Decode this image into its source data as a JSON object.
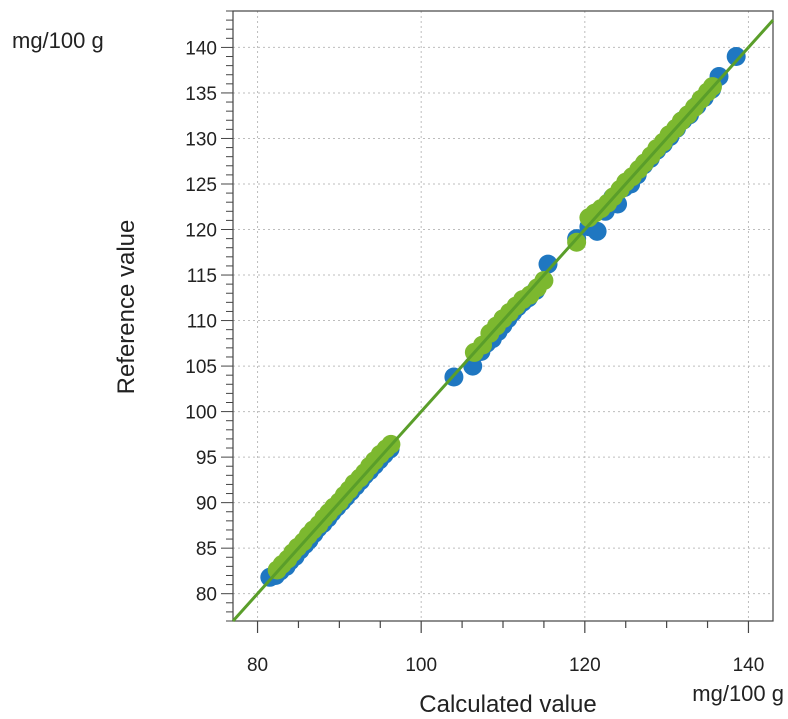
{
  "chart_data": {
    "type": "scatter",
    "title": "",
    "xlabel": "Calculated value",
    "ylabel": "Reference value",
    "x_unit": "mg/100 g",
    "y_unit": "mg/100 g",
    "xlim": [
      77,
      143
    ],
    "ylim": [
      77,
      144
    ],
    "x_ticks": [
      80,
      100,
      120,
      140
    ],
    "y_ticks": [
      80,
      85,
      90,
      95,
      100,
      105,
      110,
      115,
      120,
      125,
      130,
      135,
      140
    ],
    "grid": true,
    "legend": "none",
    "colors": {
      "blue": "#1f77c1",
      "green": "#7cb82f",
      "line": "#5a9e2a",
      "grid": "#bdbdbd"
    },
    "regression_line": {
      "x": [
        77,
        143
      ],
      "y": [
        77,
        143
      ]
    },
    "series": [
      {
        "color": "blue",
        "points": [
          [
            81.5,
            81.8
          ],
          [
            82.2,
            82.0
          ],
          [
            82.8,
            82.5
          ],
          [
            83.5,
            83.0
          ],
          [
            84.0,
            83.6
          ],
          [
            84.6,
            84.1
          ],
          [
            85.2,
            84.8
          ],
          [
            85.8,
            85.4
          ],
          [
            86.3,
            85.9
          ],
          [
            86.9,
            86.6
          ],
          [
            87.4,
            87.2
          ],
          [
            88.0,
            87.7
          ],
          [
            88.6,
            88.3
          ],
          [
            89.1,
            88.9
          ],
          [
            89.7,
            89.5
          ],
          [
            90.3,
            90.1
          ],
          [
            90.8,
            90.6
          ],
          [
            91.4,
            91.2
          ],
          [
            92.0,
            91.8
          ],
          [
            92.6,
            92.4
          ],
          [
            93.1,
            93.0
          ],
          [
            93.7,
            93.5
          ],
          [
            94.3,
            94.1
          ],
          [
            94.9,
            94.7
          ],
          [
            95.5,
            95.3
          ],
          [
            96.2,
            95.9
          ],
          [
            104.0,
            103.8
          ],
          [
            106.3,
            105.0
          ],
          [
            107.3,
            106.6
          ],
          [
            108.0,
            107.5
          ],
          [
            108.7,
            108.0
          ],
          [
            109.4,
            108.8
          ],
          [
            110.0,
            109.5
          ],
          [
            110.6,
            110.2
          ],
          [
            111.2,
            110.9
          ],
          [
            111.8,
            111.5
          ],
          [
            112.4,
            112.0
          ],
          [
            113.1,
            112.5
          ],
          [
            114.0,
            113.3
          ],
          [
            115.5,
            116.2
          ],
          [
            119.0,
            119.0
          ],
          [
            120.5,
            120.3
          ],
          [
            121.5,
            119.8
          ],
          [
            122.5,
            122.0
          ],
          [
            123.4,
            123.5
          ],
          [
            124.0,
            122.8
          ],
          [
            124.8,
            124.6
          ],
          [
            125.6,
            125.0
          ],
          [
            126.4,
            126.0
          ],
          [
            127.2,
            127.1
          ],
          [
            128.0,
            127.8
          ],
          [
            128.8,
            128.7
          ],
          [
            129.6,
            129.4
          ],
          [
            130.4,
            130.2
          ],
          [
            131.2,
            131.1
          ],
          [
            132.0,
            132.0
          ],
          [
            132.8,
            132.6
          ],
          [
            133.7,
            133.6
          ],
          [
            134.6,
            134.5
          ],
          [
            135.5,
            135.4
          ],
          [
            136.4,
            136.8
          ],
          [
            138.5,
            139.0
          ]
        ]
      },
      {
        "color": "green",
        "points": [
          [
            82.4,
            82.6
          ],
          [
            83.0,
            83.2
          ],
          [
            83.7,
            83.8
          ],
          [
            84.3,
            84.5
          ],
          [
            84.9,
            85.1
          ],
          [
            85.6,
            85.7
          ],
          [
            86.2,
            86.4
          ],
          [
            86.8,
            87.0
          ],
          [
            87.5,
            87.6
          ],
          [
            88.1,
            88.3
          ],
          [
            88.7,
            88.9
          ],
          [
            89.3,
            89.5
          ],
          [
            90.0,
            90.1
          ],
          [
            90.6,
            90.8
          ],
          [
            91.2,
            91.4
          ],
          [
            91.8,
            92.1
          ],
          [
            92.5,
            92.7
          ],
          [
            93.1,
            93.3
          ],
          [
            93.7,
            94.0
          ],
          [
            94.3,
            94.6
          ],
          [
            95.0,
            95.3
          ],
          [
            95.7,
            95.9
          ],
          [
            96.3,
            96.4
          ],
          [
            106.5,
            106.5
          ],
          [
            107.5,
            107.3
          ],
          [
            108.4,
            108.6
          ],
          [
            109.2,
            109.4
          ],
          [
            110.0,
            110.2
          ],
          [
            110.8,
            110.9
          ],
          [
            111.6,
            111.6
          ],
          [
            112.4,
            112.3
          ],
          [
            113.3,
            112.8
          ],
          [
            114.2,
            113.6
          ],
          [
            115.0,
            114.4
          ],
          [
            119.0,
            118.6
          ],
          [
            120.5,
            121.3
          ],
          [
            121.2,
            121.8
          ],
          [
            122.0,
            122.3
          ],
          [
            122.8,
            122.9
          ],
          [
            123.5,
            123.6
          ],
          [
            124.3,
            124.4
          ],
          [
            125.0,
            125.2
          ],
          [
            125.8,
            125.8
          ],
          [
            126.6,
            126.6
          ],
          [
            127.3,
            127.3
          ],
          [
            128.1,
            128.1
          ],
          [
            128.8,
            128.9
          ],
          [
            129.6,
            129.6
          ],
          [
            130.3,
            130.4
          ],
          [
            131.1,
            131.1
          ],
          [
            131.8,
            131.9
          ],
          [
            132.6,
            132.6
          ],
          [
            133.4,
            133.4
          ],
          [
            134.2,
            134.3
          ],
          [
            135.0,
            135.1
          ],
          [
            135.6,
            135.7
          ]
        ]
      }
    ]
  }
}
